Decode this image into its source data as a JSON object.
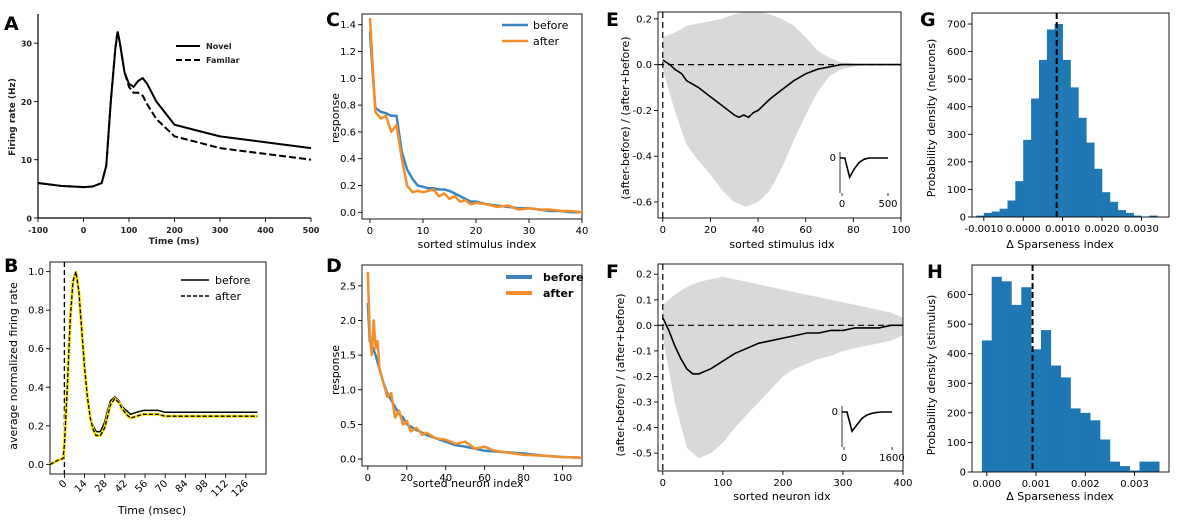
{
  "colors": {
    "blue": "#3d84bf",
    "orange": "#f28e2b",
    "bar": "#1f77b4",
    "band": "#d9d9d9",
    "black": "#000000",
    "yellow": "#f3e600"
  },
  "chart_data": [
    {
      "id": "A",
      "panel_label": "A",
      "type": "line",
      "xlabel": "Time (ms)",
      "ylabel": "Firing rate (Hz)",
      "xlim": [
        -100,
        500
      ],
      "ylim": [
        0,
        35
      ],
      "xticks": [
        "-100",
        "0",
        "100",
        "200",
        "300",
        "400",
        "500"
      ],
      "yticks": [
        "0",
        "10",
        "20",
        "30"
      ],
      "series": [
        {
          "name": "Novel",
          "style": "solid",
          "x": [
            -100,
            -50,
            0,
            20,
            40,
            50,
            60,
            70,
            75,
            80,
            90,
            100,
            110,
            120,
            130,
            140,
            160,
            200,
            250,
            300,
            400,
            500
          ],
          "y": [
            6,
            5.5,
            5.3,
            5.4,
            6,
            9,
            20,
            29,
            32,
            30,
            25,
            23,
            22.5,
            23.5,
            24,
            23,
            20,
            16,
            15,
            14,
            13,
            12
          ]
        },
        {
          "name": "Familar",
          "style": "dashed",
          "x": [
            -100,
            -50,
            0,
            20,
            40,
            50,
            60,
            70,
            75,
            80,
            90,
            100,
            110,
            120,
            130,
            140,
            160,
            200,
            250,
            300,
            400,
            500
          ],
          "y": [
            6,
            5.5,
            5.3,
            5.4,
            6,
            9,
            20,
            29,
            32,
            30,
            25,
            22.5,
            21.5,
            21.5,
            21,
            19.5,
            17,
            14,
            13,
            12,
            11,
            10
          ]
        }
      ]
    },
    {
      "id": "B",
      "panel_label": "B",
      "type": "line",
      "xlabel": "Time (msec)",
      "ylabel": "average normalized firing rate",
      "xlim": [
        -10,
        140
      ],
      "ylim": [
        -0.05,
        1.05
      ],
      "xticks": [
        "0",
        "14",
        "28",
        "42",
        "56",
        "70",
        "84",
        "98",
        "112",
        "126"
      ],
      "yticks": [
        "0.0",
        "0.2",
        "0.4",
        "0.6",
        "0.8",
        "1.0"
      ],
      "vline": 0,
      "series": [
        {
          "name": "before",
          "style": "solid",
          "x": [
            -10,
            -5,
            -1,
            0,
            2,
            4,
            6,
            8,
            10,
            12,
            14,
            16,
            18,
            20,
            22,
            25,
            28,
            30,
            32,
            35,
            38,
            40,
            43,
            46,
            50,
            55,
            60,
            65,
            70,
            80,
            90,
            100,
            110,
            120,
            130,
            134
          ],
          "y": [
            0.0,
            0.02,
            0.03,
            0.1,
            0.4,
            0.75,
            0.95,
            1.0,
            0.9,
            0.7,
            0.5,
            0.35,
            0.25,
            0.2,
            0.17,
            0.17,
            0.22,
            0.28,
            0.33,
            0.35,
            0.33,
            0.3,
            0.28,
            0.26,
            0.27,
            0.28,
            0.28,
            0.28,
            0.27,
            0.27,
            0.27,
            0.27,
            0.27,
            0.27,
            0.27,
            0.27
          ]
        },
        {
          "name": "after",
          "style": "dashed",
          "x": [
            -10,
            -5,
            -1,
            0,
            2,
            4,
            6,
            8,
            10,
            12,
            14,
            16,
            18,
            20,
            22,
            25,
            28,
            30,
            32,
            35,
            38,
            40,
            43,
            46,
            50,
            55,
            60,
            65,
            70,
            80,
            90,
            100,
            110,
            120,
            130,
            134
          ],
          "y": [
            0.0,
            0.02,
            0.03,
            0.1,
            0.4,
            0.75,
            0.95,
            1.0,
            0.9,
            0.7,
            0.5,
            0.35,
            0.24,
            0.18,
            0.15,
            0.15,
            0.19,
            0.25,
            0.31,
            0.34,
            0.32,
            0.29,
            0.26,
            0.24,
            0.25,
            0.26,
            0.26,
            0.26,
            0.25,
            0.25,
            0.25,
            0.25,
            0.25,
            0.25,
            0.25,
            0.25
          ]
        }
      ]
    },
    {
      "id": "C",
      "panel_label": "C",
      "type": "line",
      "xlabel": "sorted stimulus index",
      "ylabel": "response",
      "xlim": [
        -1.5,
        40
      ],
      "ylim": [
        -0.05,
        1.48
      ],
      "xticks": [
        "0",
        "10",
        "20",
        "30",
        "40"
      ],
      "yticks": [
        "0.0",
        "0.2",
        "0.4",
        "0.6",
        "0.8",
        "1.0",
        "1.2",
        "1.4"
      ],
      "series": [
        {
          "name": "before",
          "x": [
            0,
            0.5,
            1,
            2,
            3,
            4,
            5,
            6,
            7,
            8,
            9,
            10,
            11,
            12,
            13,
            14,
            15,
            16,
            17,
            18,
            19,
            20,
            22,
            24,
            26,
            28,
            30,
            32,
            34,
            36,
            38,
            40
          ],
          "y": [
            1.35,
            1.05,
            0.78,
            0.75,
            0.74,
            0.72,
            0.72,
            0.45,
            0.32,
            0.25,
            0.2,
            0.19,
            0.18,
            0.18,
            0.17,
            0.17,
            0.16,
            0.14,
            0.12,
            0.1,
            0.08,
            0.08,
            0.06,
            0.05,
            0.04,
            0.03,
            0.03,
            0.02,
            0.01,
            0.01,
            0.0,
            0.0
          ]
        },
        {
          "name": "after",
          "x": [
            0,
            0.5,
            1,
            2,
            3,
            4,
            5,
            6,
            7,
            8,
            9,
            10,
            11,
            12,
            13,
            14,
            15,
            16,
            17,
            18,
            19,
            20,
            22,
            24,
            26,
            28,
            30,
            32,
            34,
            36,
            38,
            40
          ],
          "y": [
            1.45,
            1.1,
            0.75,
            0.7,
            0.72,
            0.6,
            0.65,
            0.4,
            0.2,
            0.15,
            0.16,
            0.15,
            0.16,
            0.17,
            0.12,
            0.14,
            0.1,
            0.12,
            0.08,
            0.09,
            0.06,
            0.07,
            0.06,
            0.04,
            0.05,
            0.02,
            0.03,
            0.02,
            0.02,
            0.01,
            0.01,
            0.0
          ]
        }
      ]
    },
    {
      "id": "D",
      "panel_label": "D",
      "type": "line",
      "xlabel": "sorted neuron index",
      "ylabel": "response",
      "xlim": [
        -3,
        110
      ],
      "ylim": [
        -0.1,
        2.8
      ],
      "xticks": [
        "0",
        "20",
        "40",
        "60",
        "80",
        "100"
      ],
      "yticks": [
        "0.0",
        "0.5",
        "1.0",
        "1.5",
        "2.0",
        "2.5"
      ],
      "series": [
        {
          "name": "before",
          "x": [
            0,
            1,
            2,
            4,
            6,
            8,
            10,
            12,
            14,
            16,
            18,
            20,
            25,
            30,
            35,
            40,
            45,
            50,
            55,
            60,
            70,
            80,
            90,
            100,
            110
          ],
          "y": [
            2.25,
            1.7,
            1.65,
            1.5,
            1.3,
            1.1,
            0.95,
            0.85,
            0.75,
            0.65,
            0.6,
            0.5,
            0.42,
            0.35,
            0.3,
            0.25,
            0.2,
            0.18,
            0.15,
            0.12,
            0.1,
            0.08,
            0.05,
            0.03,
            0.02
          ]
        },
        {
          "name": "after",
          "x": [
            0,
            1,
            2,
            3,
            4,
            5,
            6,
            8,
            10,
            12,
            14,
            16,
            18,
            20,
            22,
            25,
            28,
            30,
            35,
            40,
            45,
            50,
            55,
            60,
            65,
            70,
            80,
            90,
            100,
            110
          ],
          "y": [
            2.7,
            1.8,
            1.5,
            2.0,
            1.6,
            1.7,
            1.3,
            1.1,
            0.9,
            0.95,
            0.6,
            0.7,
            0.5,
            0.55,
            0.4,
            0.45,
            0.35,
            0.38,
            0.3,
            0.28,
            0.22,
            0.25,
            0.15,
            0.18,
            0.12,
            0.1,
            0.06,
            0.05,
            0.03,
            0.02
          ]
        }
      ]
    },
    {
      "id": "E",
      "panel_label": "E",
      "type": "area",
      "xlabel": "sorted stimulus idx",
      "ylabel": "(after-before) / (after+before)",
      "xlim": [
        -2,
        100
      ],
      "ylim": [
        -0.67,
        0.23
      ],
      "xticks": [
        "0",
        "20",
        "40",
        "60",
        "80",
        "100"
      ],
      "yticks": [
        "-0.6",
        "-0.4",
        "-0.2",
        "0.0",
        "0.2"
      ],
      "band": {
        "x": [
          0,
          5,
          10,
          15,
          20,
          25,
          30,
          35,
          40,
          45,
          50,
          55,
          60,
          65,
          70,
          75,
          80,
          85,
          90,
          95,
          100
        ],
        "upper": [
          0.12,
          0.14,
          0.17,
          0.18,
          0.19,
          0.2,
          0.22,
          0.23,
          0.23,
          0.22,
          0.2,
          0.17,
          0.12,
          0.06,
          0.03,
          0.01,
          0.005,
          0.0,
          0.0,
          0.0,
          0.0
        ],
        "lower": [
          -0.02,
          -0.2,
          -0.35,
          -0.42,
          -0.48,
          -0.55,
          -0.6,
          -0.62,
          -0.6,
          -0.55,
          -0.45,
          -0.33,
          -0.22,
          -0.12,
          -0.05,
          -0.02,
          -0.01,
          0.0,
          0.0,
          0.0,
          0.0
        ]
      },
      "mean": {
        "x": [
          0,
          3,
          5,
          8,
          10,
          15,
          20,
          25,
          30,
          32,
          34,
          36,
          38,
          40,
          45,
          50,
          55,
          60,
          65,
          70,
          75,
          80,
          90,
          100
        ],
        "y": [
          0.02,
          0.0,
          -0.02,
          -0.04,
          -0.07,
          -0.1,
          -0.14,
          -0.18,
          -0.22,
          -0.23,
          -0.22,
          -0.23,
          -0.21,
          -0.2,
          -0.15,
          -0.11,
          -0.07,
          -0.04,
          -0.02,
          -0.01,
          0.0,
          0.0,
          0.0,
          0.0
        ]
      },
      "hline": 0,
      "vline": 0,
      "inset": {
        "zero_label": "0",
        "xticks": [
          "0",
          "500"
        ],
        "trace": [
          0,
          0,
          -0.45,
          -0.25,
          -0.1,
          -0.03,
          0,
          0,
          0,
          0,
          0
        ]
      }
    },
    {
      "id": "F",
      "panel_label": "F",
      "type": "area",
      "xlabel": "sorted neuron idx",
      "ylabel": "(after-before) / (after+before)",
      "xlim": [
        -8,
        400
      ],
      "ylim": [
        -0.57,
        0.24
      ],
      "xticks": [
        "0",
        "100",
        "200",
        "300",
        "400"
      ],
      "yticks": [
        "-0.5",
        "-0.4",
        "-0.3",
        "-0.2",
        "-0.1",
        "0.0",
        "0.1",
        "0.2"
      ],
      "band": {
        "x": [
          0,
          20,
          40,
          60,
          80,
          100,
          120,
          140,
          160,
          180,
          200,
          220,
          240,
          260,
          280,
          300,
          320,
          340,
          360,
          380,
          400
        ],
        "upper": [
          0.08,
          0.12,
          0.15,
          0.17,
          0.18,
          0.19,
          0.18,
          0.17,
          0.16,
          0.15,
          0.14,
          0.13,
          0.12,
          0.11,
          0.1,
          0.09,
          0.08,
          0.07,
          0.06,
          0.05,
          0.03
        ],
        "lower": [
          -0.05,
          -0.3,
          -0.48,
          -0.52,
          -0.5,
          -0.46,
          -0.4,
          -0.35,
          -0.3,
          -0.25,
          -0.2,
          -0.17,
          -0.15,
          -0.13,
          -0.12,
          -0.1,
          -0.09,
          -0.08,
          -0.07,
          -0.06,
          -0.04
        ]
      },
      "mean": {
        "x": [
          0,
          10,
          20,
          30,
          40,
          50,
          60,
          70,
          80,
          100,
          120,
          140,
          160,
          180,
          200,
          220,
          240,
          260,
          280,
          300,
          320,
          340,
          360,
          380,
          400
        ],
        "y": [
          0.03,
          -0.02,
          -0.08,
          -0.13,
          -0.17,
          -0.19,
          -0.19,
          -0.18,
          -0.17,
          -0.14,
          -0.11,
          -0.09,
          -0.07,
          -0.06,
          -0.05,
          -0.04,
          -0.03,
          -0.03,
          -0.02,
          -0.02,
          -0.01,
          -0.01,
          -0.01,
          0.0,
          0.0
        ]
      },
      "hline": 0,
      "vline": 0,
      "inset": {
        "zero_label": "0",
        "xticks": [
          "0",
          "1600"
        ],
        "trace": [
          0,
          0,
          -0.45,
          -0.3,
          -0.15,
          -0.07,
          -0.03,
          -0.01,
          0,
          0,
          0
        ]
      }
    },
    {
      "id": "G",
      "panel_label": "G",
      "type": "bar",
      "xlabel": "Δ Sparseness index",
      "ylabel": "Probability density (neurons)",
      "xlim": [
        -0.0013,
        0.0037
      ],
      "ylim": [
        0,
        740
      ],
      "xticks": [
        "-0.0010",
        "0.0000",
        "0.0010",
        "0.0020",
        "0.0030"
      ],
      "xtick_values": [
        -0.001,
        0.0,
        0.001,
        0.002,
        0.003
      ],
      "yticks": [
        "0",
        "100",
        "200",
        "300",
        "400",
        "500",
        "600",
        "700"
      ],
      "bin_edges": [
        -0.0012,
        -0.001,
        -0.0008,
        -0.0006,
        -0.0004,
        -0.0002,
        0.0,
        0.0002,
        0.0004,
        0.0006,
        0.0008,
        0.001,
        0.0012,
        0.0014,
        0.0016,
        0.0018,
        0.002,
        0.0022,
        0.0024,
        0.0026,
        0.0028,
        0.003,
        0.0032,
        0.0034
      ],
      "values": [
        5,
        15,
        20,
        30,
        60,
        130,
        280,
        430,
        570,
        680,
        700,
        570,
        470,
        360,
        270,
        175,
        90,
        55,
        25,
        15,
        5,
        0,
        5
      ],
      "vline": 0.00085
    },
    {
      "id": "H",
      "panel_label": "H",
      "type": "bar",
      "xlabel": "Δ Sparseness index",
      "ylabel": "Probability density (stimulus)",
      "xlim": [
        -0.0003,
        0.0037
      ],
      "ylim": [
        0,
        700
      ],
      "xticks": [
        "0.000",
        "0.001",
        "0.002",
        "0.003"
      ],
      "xtick_values": [
        0.0,
        0.001,
        0.002,
        0.003
      ],
      "yticks": [
        "0",
        "100",
        "200",
        "300",
        "400",
        "500",
        "600"
      ],
      "bin_edges": [
        -0.0001,
        0.0001,
        0.0003,
        0.0005,
        0.0007,
        0.0009,
        0.0011,
        0.0013,
        0.0015,
        0.0017,
        0.0019,
        0.0021,
        0.0023,
        0.0025,
        0.0027,
        0.0029,
        0.0031,
        0.0033,
        0.0035
      ],
      "values": [
        445,
        660,
        645,
        565,
        625,
        415,
        480,
        360,
        320,
        215,
        200,
        175,
        110,
        35,
        20,
        5,
        35,
        35
      ],
      "vline": 0.00093
    }
  ]
}
